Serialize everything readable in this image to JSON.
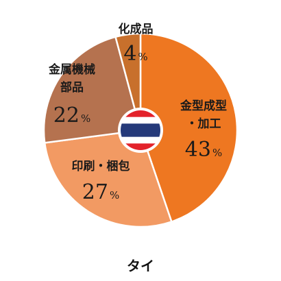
{
  "chart_data": {
    "type": "pie",
    "title": "タイ",
    "unit": "%",
    "slices": [
      {
        "label_lines": [
          "金型成型",
          "・加工"
        ],
        "value": 43,
        "color": "#ee7721"
      },
      {
        "label_lines": [
          "印刷・梱包"
        ],
        "value": 27,
        "color": "#f29a63"
      },
      {
        "label_lines": [
          "金属機械",
          "部品"
        ],
        "value": 22,
        "color": "#b5724f"
      },
      {
        "label_lines": [
          "化成品"
        ],
        "value": 4,
        "color": "#c8702c"
      }
    ],
    "center_icon": "thailand-flag-icon",
    "flag_colors": {
      "red": "#e3222b",
      "white": "#ffffff",
      "blue": "#253a7a"
    }
  }
}
